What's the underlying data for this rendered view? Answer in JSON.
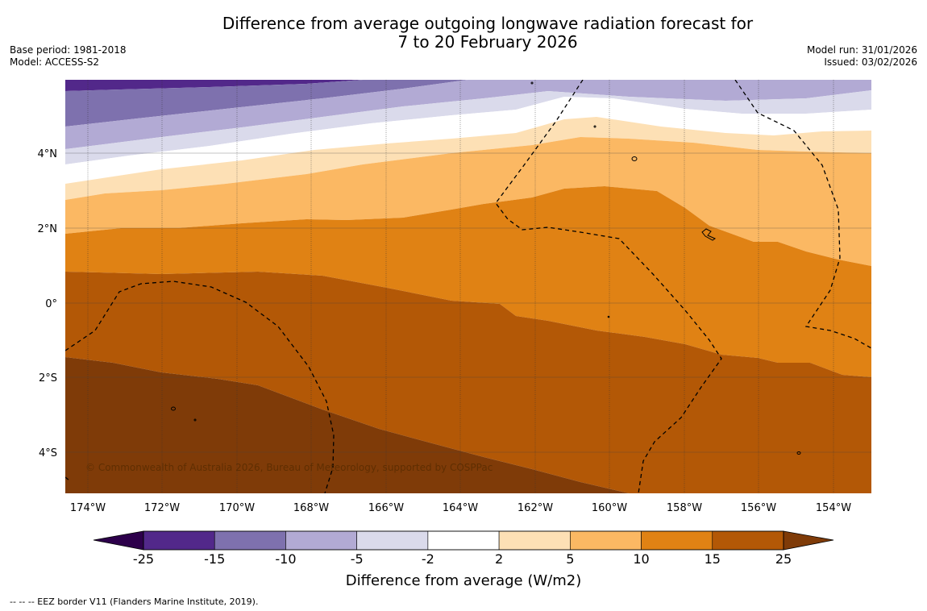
{
  "title": {
    "line1": "Difference from average outgoing longwave radiation forecast for",
    "line2": "7 to 20 February 2026"
  },
  "meta_left": {
    "base_period": "Base period: 1981-2018",
    "model": "Model: ACCESS-S2"
  },
  "meta_right": {
    "model_run": "Model run: 31/01/2026",
    "issued": "Issued: 03/02/2026"
  },
  "map": {
    "lat_labels": [
      "4°N",
      "2°N",
      "0°",
      "2°S",
      "4°S"
    ],
    "lon_labels": [
      "174°W",
      "172°W",
      "170°W",
      "168°W",
      "166°W",
      "164°W",
      "162°W",
      "160°W",
      "158°W",
      "156°W",
      "154°W"
    ],
    "copyright": "© Commonwealth of Australia 2026, Bureau of Meteorology, supported by COSPPac"
  },
  "colorbar": {
    "title": "Difference from average (W/m2)",
    "ticks": [
      "-25",
      "-15",
      "-10",
      "-5",
      "-2",
      "2",
      "5",
      "10",
      "15",
      "25"
    ],
    "colors": [
      "#52288a",
      "#7e71ae",
      "#b2aad4",
      "#dadaeb",
      "#ffffff",
      "#fde0b5",
      "#fbb863",
      "#e08214",
      "#b35806"
    ],
    "under_color": "#2d004b",
    "over_color": "#7f3b08"
  },
  "footnote": "--  --  -- EEZ border V11 (Flanders Marine Institute, 2019)."
}
